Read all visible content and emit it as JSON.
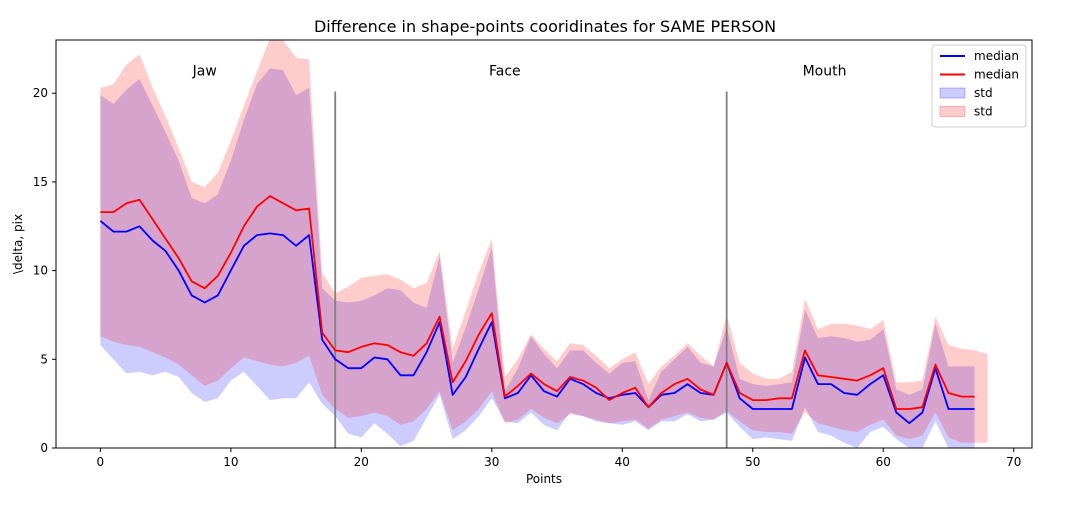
{
  "chart_data": {
    "type": "line",
    "title": "Difference in shape-points cooridinates for SAME PERSON",
    "xlabel": "Points",
    "ylabel": "\\delta, pix",
    "xlim": [
      -3.4,
      71.4
    ],
    "ylim": [
      0,
      23
    ],
    "xticks": [
      0,
      10,
      20,
      30,
      40,
      50,
      60,
      70
    ],
    "yticks": [
      0,
      5,
      10,
      15,
      20
    ],
    "grid": false,
    "legend_position": "top-right",
    "legend": [
      {
        "label": "median",
        "kind": "line",
        "color": "#0000ff"
      },
      {
        "label": "median",
        "kind": "line",
        "color": "#ff0000"
      },
      {
        "label": "std",
        "kind": "patch",
        "color": "#0000ff"
      },
      {
        "label": "std",
        "kind": "patch",
        "color": "#ff0000"
      }
    ],
    "vlines": [
      18,
      48
    ],
    "vline_range": [
      0,
      20.1
    ],
    "annotations": [
      {
        "text": "Jaw",
        "x": 8,
        "y": 21
      },
      {
        "text": "Face",
        "x": 31,
        "y": 21
      },
      {
        "text": "Mouth",
        "x": 55.5,
        "y": 21
      }
    ],
    "x": [
      0,
      1,
      2,
      3,
      4,
      5,
      6,
      7,
      8,
      9,
      10,
      11,
      12,
      13,
      14,
      15,
      16,
      17,
      18,
      19,
      20,
      21,
      22,
      23,
      24,
      25,
      26,
      27,
      28,
      29,
      30,
      31,
      32,
      33,
      34,
      35,
      36,
      37,
      38,
      39,
      40,
      41,
      42,
      43,
      44,
      45,
      46,
      47,
      48,
      49,
      50,
      51,
      52,
      53,
      54,
      55,
      56,
      57,
      58,
      59,
      60,
      61,
      62,
      63,
      64,
      65,
      66,
      67,
      68
    ],
    "series": [
      {
        "name": "median",
        "color": "#0000ff",
        "values": [
          12.8,
          12.2,
          12.2,
          12.5,
          11.7,
          11.1,
          10.0,
          8.6,
          8.2,
          8.6,
          10.0,
          11.4,
          12.0,
          12.1,
          12.0,
          11.4,
          12.0,
          6.1,
          5.0,
          4.5,
          4.5,
          5.1,
          5.0,
          4.1,
          4.1,
          5.4,
          7.1,
          3.0,
          4.0,
          5.6,
          7.1,
          2.8,
          3.1,
          4.1,
          3.2,
          2.9,
          3.9,
          3.6,
          3.1,
          2.8,
          3.0,
          3.1,
          2.3,
          3.0,
          3.1,
          3.6,
          3.1,
          3.0,
          4.8,
          2.8,
          2.2,
          2.2,
          2.2,
          2.2,
          5.1,
          3.6,
          3.6,
          3.1,
          3.0,
          3.6,
          4.1,
          2.0,
          1.4,
          2.0,
          4.5,
          2.2,
          2.2,
          2.2,
          null
        ],
        "band": {
          "lower": [
            5.8,
            5.0,
            4.2,
            4.3,
            4.1,
            4.3,
            4.0,
            3.1,
            2.6,
            2.8,
            3.8,
            4.3,
            3.5,
            2.7,
            2.8,
            2.8,
            3.7,
            2.5,
            1.8,
            0.8,
            0.6,
            1.4,
            0.8,
            0.1,
            0.4,
            1.7,
            3.0,
            0.5,
            1.0,
            1.8,
            2.8,
            1.5,
            1.4,
            2.0,
            1.3,
            1.0,
            2.0,
            1.8,
            1.5,
            1.4,
            1.3,
            1.5,
            1.0,
            1.5,
            1.5,
            1.9,
            1.5,
            1.6,
            2.0,
            1.2,
            0.5,
            0.6,
            0.5,
            0.4,
            2.3,
            0.9,
            0.7,
            0.3,
            0.0,
            0.9,
            1.2,
            0.5,
            0.0,
            0.0,
            1.5,
            0.0,
            0.0,
            0.0,
            null
          ],
          "upper": [
            19.9,
            19.4,
            20.2,
            20.8,
            19.3,
            17.8,
            16.2,
            14.1,
            13.8,
            14.3,
            16.2,
            18.5,
            20.5,
            21.4,
            21.3,
            19.9,
            20.3,
            9.0,
            8.3,
            8.2,
            8.3,
            8.6,
            9.0,
            8.9,
            8.2,
            7.9,
            10.8,
            4.8,
            6.8,
            9.0,
            11.3,
            3.2,
            4.5,
            6.3,
            5.3,
            4.5,
            5.5,
            5.5,
            4.8,
            4.2,
            4.8,
            4.9,
            2.7,
            4.3,
            5.0,
            5.7,
            4.8,
            4.6,
            6.8,
            3.9,
            3.6,
            3.5,
            3.6,
            3.7,
            7.8,
            6.2,
            6.3,
            6.2,
            6.0,
            6.1,
            6.7,
            3.3,
            3.0,
            3.3,
            7.0,
            4.6,
            4.6,
            4.6,
            4.6
          ]
        }
      },
      {
        "name": "median",
        "color": "#ff0000",
        "values": [
          13.3,
          13.3,
          13.8,
          14.0,
          12.9,
          11.8,
          10.7,
          9.4,
          9.0,
          9.7,
          11.0,
          12.5,
          13.6,
          14.2,
          13.8,
          13.4,
          13.5,
          6.5,
          5.5,
          5.4,
          5.7,
          5.9,
          5.8,
          5.4,
          5.2,
          5.9,
          7.4,
          3.7,
          4.9,
          6.4,
          7.6,
          2.9,
          3.5,
          4.2,
          3.6,
          3.2,
          4.0,
          3.8,
          3.4,
          2.7,
          3.1,
          3.4,
          2.3,
          3.1,
          3.6,
          3.9,
          3.3,
          3.0,
          4.8,
          3.1,
          2.7,
          2.7,
          2.8,
          2.8,
          5.5,
          4.1,
          4.0,
          3.9,
          3.8,
          4.1,
          4.5,
          2.2,
          2.2,
          2.3,
          4.7,
          3.1,
          2.9,
          2.9,
          null
        ],
        "band": {
          "lower": [
            6.3,
            6.0,
            5.8,
            5.7,
            5.4,
            5.1,
            4.7,
            4.1,
            3.5,
            3.8,
            4.5,
            5.1,
            4.9,
            4.7,
            4.6,
            4.8,
            5.2,
            3.0,
            2.2,
            1.7,
            1.8,
            2.0,
            1.8,
            1.3,
            1.5,
            2.2,
            3.2,
            1.0,
            1.5,
            2.2,
            3.2,
            1.4,
            1.6,
            2.2,
            1.7,
            1.4,
            1.9,
            1.8,
            1.6,
            1.4,
            1.5,
            1.6,
            1.1,
            1.6,
            1.8,
            2.0,
            1.7,
            1.6,
            2.1,
            1.5,
            1.0,
            0.9,
            0.9,
            0.8,
            2.0,
            1.4,
            1.2,
            1.0,
            0.9,
            1.3,
            1.6,
            0.7,
            0.5,
            0.7,
            2.0,
            0.6,
            0.3,
            0.3,
            0.3
          ],
          "upper": [
            20.3,
            20.5,
            21.6,
            22.2,
            20.3,
            18.7,
            16.9,
            15.0,
            14.7,
            15.5,
            17.3,
            19.3,
            21.2,
            23.1,
            23.0,
            22.0,
            21.9,
            9.9,
            8.7,
            9.1,
            9.6,
            9.7,
            9.8,
            9.5,
            9.0,
            9.3,
            11.1,
            5.6,
            7.7,
            9.9,
            11.8,
            4.0,
            5.0,
            6.4,
            5.6,
            4.9,
            5.9,
            5.8,
            5.2,
            4.5,
            5.0,
            5.4,
            3.6,
            4.6,
            5.2,
            5.9,
            5.2,
            4.6,
            7.5,
            4.8,
            4.2,
            3.9,
            3.9,
            4.3,
            8.4,
            6.7,
            7.0,
            7.0,
            6.9,
            6.7,
            7.2,
            3.7,
            3.7,
            3.8,
            7.4,
            5.8,
            5.6,
            5.5,
            5.3
          ]
        }
      }
    ]
  }
}
